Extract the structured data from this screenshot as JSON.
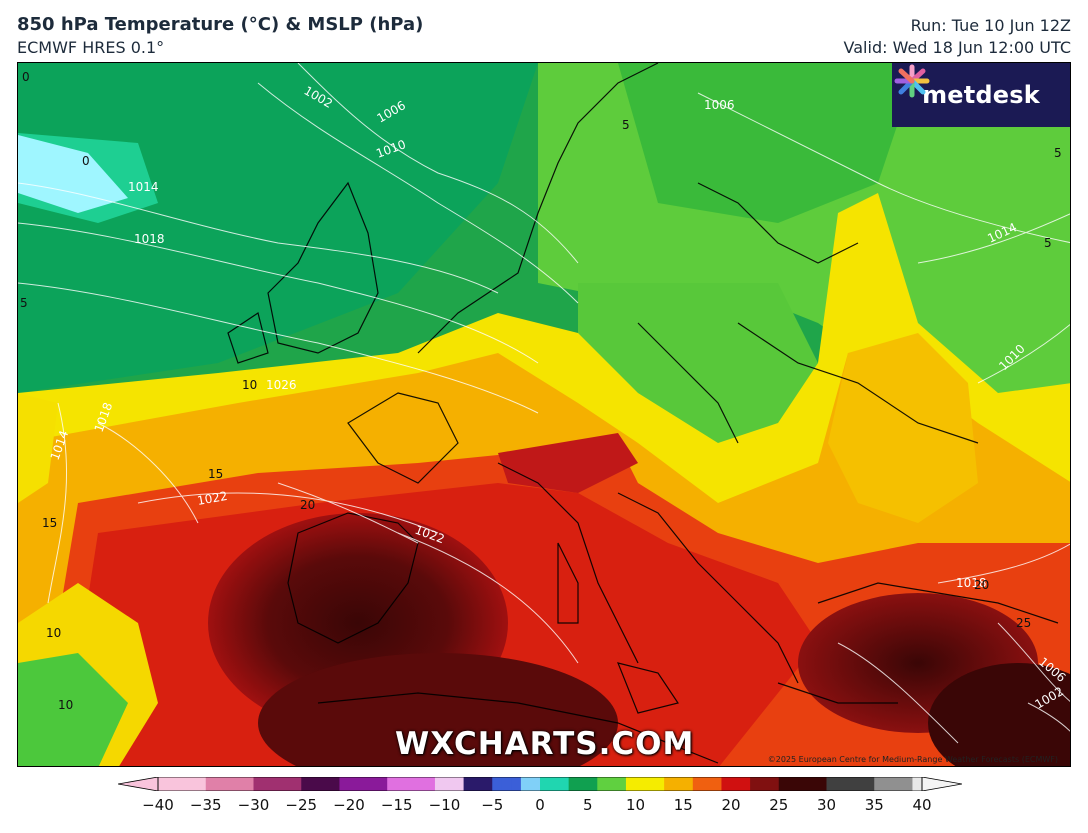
{
  "header": {
    "title": "850 hPa Temperature (°C) & MSLP (hPa)",
    "subtitle": "ECMWF HRES 0.1°",
    "run": "Run: Tue 10 Jun 12Z",
    "valid": "Valid: Wed 18 Jun 12:00 UTC"
  },
  "logo": {
    "text": "metdesk",
    "icon": "metdesk-flower-icon"
  },
  "watermark": "WXCHARTS.COM",
  "copyright": "©2025 European Centre for Medium-Range Weather Forecasts (ECMWF)",
  "isobar_labels": [
    "1002",
    "1006",
    "1010",
    "1014",
    "1018",
    "1026",
    "1014",
    "1018",
    "1022",
    "1022",
    "1006",
    "1014",
    "1010",
    "1018",
    "1006",
    "1002"
  ],
  "temperature_labels": [
    "0",
    "0",
    "5",
    "5",
    "5",
    "10",
    "10",
    "10",
    "15",
    "15",
    "20",
    "20",
    "25",
    "5"
  ],
  "colorbar": {
    "ticks": [
      "−40",
      "−35",
      "−30",
      "−25",
      "−20",
      "−15",
      "−10",
      "−5",
      "0",
      "5",
      "10",
      "15",
      "20",
      "25",
      "30",
      "35",
      "40"
    ],
    "colors": {
      "cold_pink": "#f5a0c8",
      "purple": "#7a1c8c",
      "blue": "#3b5fd8",
      "cyan": "#20d6d0",
      "green": "#27b040",
      "yellow": "#f5ec00",
      "orange": "#f5a000",
      "red": "#e02010",
      "dark_red": "#5a0a0a",
      "grey": "#b0b0b0"
    }
  }
}
